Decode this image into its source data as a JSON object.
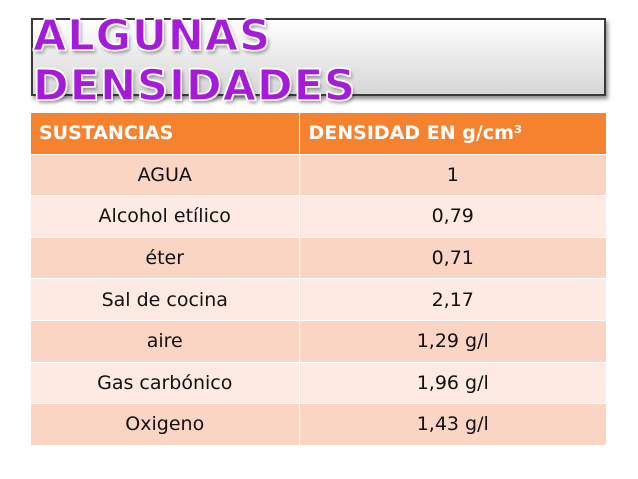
{
  "title": "ALGUNAS DENSIDADES",
  "table": {
    "headers": {
      "substance": "SUSTANCIAS",
      "density": "DENSIDAD EN g/cm³"
    },
    "rows": [
      {
        "substance": "AGUA",
        "density": "1"
      },
      {
        "substance": "Alcohol etílico",
        "density": "0,79"
      },
      {
        "substance": "éter",
        "density": "0,71"
      },
      {
        "substance": "Sal de cocina",
        "density": "2,17"
      },
      {
        "substance": "aire",
        "density": "1,29 g/l"
      },
      {
        "substance": "Gas carbónico",
        "density": "1,96 g/l"
      },
      {
        "substance": "Oxigeno",
        "density": "1,43 g/l"
      }
    ]
  },
  "colors": {
    "title": "#a61bd9",
    "header_bg": "#f4822f",
    "row_dark": "#fbd5c4",
    "row_light": "#fdeae2"
  }
}
